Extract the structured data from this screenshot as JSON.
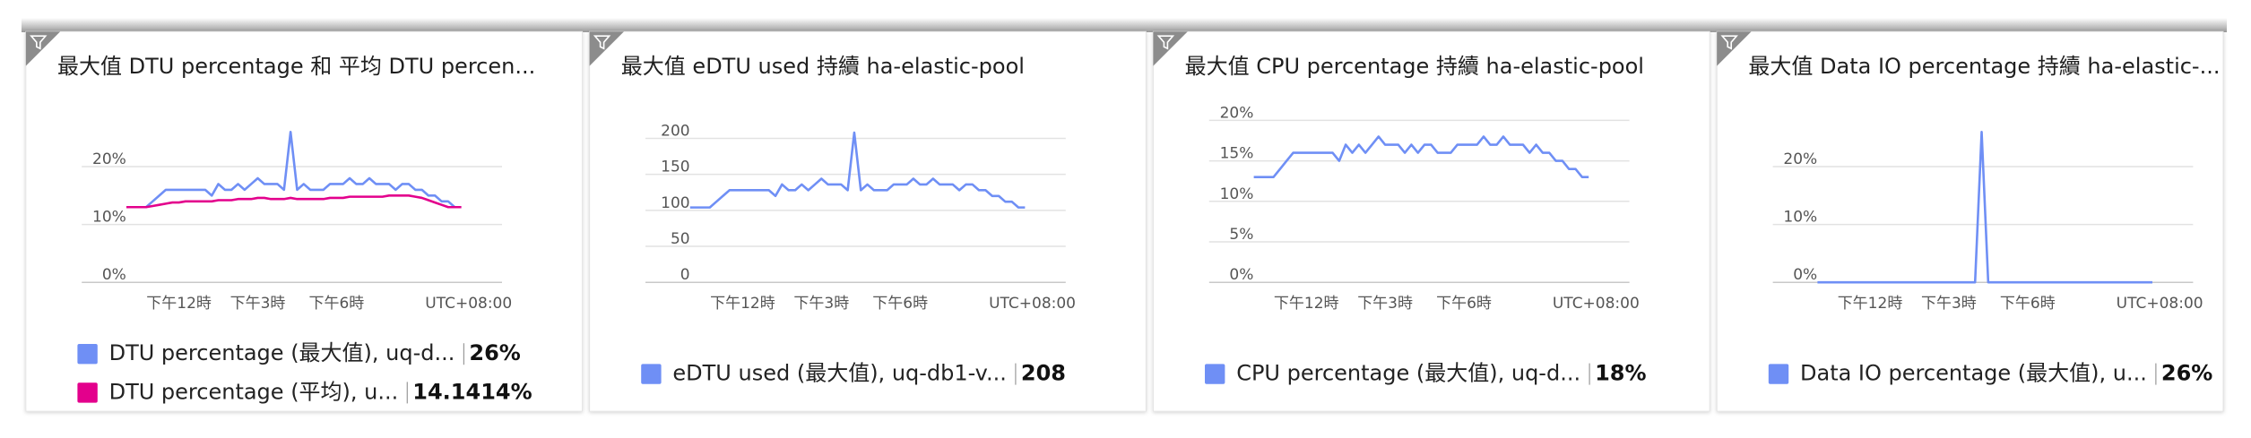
{
  "chart_data": [
    {
      "type": "line",
      "title": "最大值 DTU percentage 和 平均 DTU percen...",
      "xlabel": "UTC+08:00",
      "x": [
        10,
        10.25,
        10.5,
        10.75,
        11,
        11.25,
        11.5,
        11.75,
        12,
        12.25,
        12.5,
        12.75,
        13,
        13.25,
        13.5,
        13.75,
        14,
        14.25,
        14.5,
        14.75,
        15,
        15.25,
        15.5,
        15.75,
        16,
        16.25,
        16.5,
        16.75,
        17,
        17.25,
        17.5,
        17.75,
        18,
        18.25,
        18.5,
        18.75,
        19,
        19.25,
        19.5,
        19.75,
        20,
        20.25,
        20.5,
        20.75,
        21,
        21.25,
        21.5,
        21.75,
        22,
        22.25,
        22.5,
        22.75
      ],
      "xlim": [
        8.3,
        24.3
      ],
      "xticks": [
        {
          "value": 12,
          "label": "下午12時"
        },
        {
          "value": 15,
          "label": "下午3時"
        },
        {
          "value": 18,
          "label": "下午6時"
        }
      ],
      "ylim": [
        0,
        28
      ],
      "yticks": [
        {
          "value": 0,
          "label": "0%"
        },
        {
          "value": 10,
          "label": "10%"
        },
        {
          "value": 20,
          "label": "20%"
        }
      ],
      "grid": true,
      "series": [
        {
          "name": "DTU percentage (最大值), uq-d...",
          "summary": "26%",
          "color": "#6f8ff5",
          "values": [
            13,
            13,
            13,
            13,
            14,
            15,
            16,
            16,
            16,
            16,
            16,
            16,
            16,
            15,
            17,
            16,
            16,
            17,
            16,
            17,
            18,
            17,
            17,
            17,
            16,
            26,
            16,
            17,
            16,
            16,
            16,
            17,
            17,
            17,
            18,
            17,
            17,
            18,
            17,
            17,
            17,
            16,
            17,
            17,
            16,
            16,
            15,
            15,
            14,
            14,
            13,
            13
          ]
        },
        {
          "name": "DTU percentage (平均), u...",
          "summary": "14.1414%",
          "color": "#e3008c",
          "values": [
            13,
            13,
            13,
            13,
            13.2,
            13.4,
            13.6,
            13.8,
            13.8,
            14,
            14,
            14,
            14,
            14,
            14.2,
            14.2,
            14.2,
            14.4,
            14.4,
            14.4,
            14.6,
            14.6,
            14.4,
            14.4,
            14.4,
            14.6,
            14.4,
            14.4,
            14.4,
            14.4,
            14.4,
            14.6,
            14.6,
            14.6,
            14.8,
            14.8,
            14.8,
            14.8,
            14.8,
            14.8,
            15,
            15,
            15,
            15,
            14.8,
            14.6,
            14.2,
            13.8,
            13.4,
            13,
            13,
            13
          ]
        }
      ]
    },
    {
      "type": "line",
      "title": "最大值 eDTU used 持續 ha-elastic-pool",
      "xlabel": "UTC+08:00",
      "x": [
        10,
        10.25,
        10.5,
        10.75,
        11,
        11.25,
        11.5,
        11.75,
        12,
        12.25,
        12.5,
        12.75,
        13,
        13.25,
        13.5,
        13.75,
        14,
        14.25,
        14.5,
        14.75,
        15,
        15.25,
        15.5,
        15.75,
        16,
        16.25,
        16.5,
        16.75,
        17,
        17.25,
        17.5,
        17.75,
        18,
        18.25,
        18.5,
        18.75,
        19,
        19.25,
        19.5,
        19.75,
        20,
        20.25,
        20.5,
        20.75,
        21,
        21.25,
        21.5,
        21.75,
        22,
        22.25,
        22.5,
        22.75
      ],
      "xlim": [
        8.3,
        24.3
      ],
      "xticks": [
        {
          "value": 12,
          "label": "下午12時"
        },
        {
          "value": 15,
          "label": "下午3時"
        },
        {
          "value": 18,
          "label": "下午6時"
        }
      ],
      "ylim": [
        0,
        225
      ],
      "yticks": [
        0,
        50,
        100,
        150,
        200
      ],
      "grid": true,
      "series": [
        {
          "name": "eDTU used (最大值), uq-db1-v...",
          "summary": "208",
          "color": "#6f8ff5",
          "values": [
            104,
            104,
            104,
            104,
            112,
            120,
            128,
            128,
            128,
            128,
            128,
            128,
            128,
            120,
            136,
            128,
            128,
            136,
            128,
            136,
            144,
            136,
            136,
            136,
            128,
            208,
            128,
            136,
            128,
            128,
            128,
            136,
            136,
            136,
            144,
            136,
            136,
            144,
            136,
            136,
            136,
            128,
            136,
            136,
            128,
            128,
            120,
            120,
            112,
            112,
            104,
            104
          ]
        }
      ]
    },
    {
      "type": "line",
      "title": "最大值 CPU percentage 持續 ha-elastic-pool",
      "xlabel": "UTC+08:00",
      "x": [
        10,
        10.25,
        10.5,
        10.75,
        11,
        11.25,
        11.5,
        11.75,
        12,
        12.25,
        12.5,
        12.75,
        13,
        13.25,
        13.5,
        13.75,
        14,
        14.25,
        14.5,
        14.75,
        15,
        15.25,
        15.5,
        15.75,
        16,
        16.25,
        16.5,
        16.75,
        17,
        17.25,
        17.5,
        17.75,
        18,
        18.25,
        18.5,
        18.75,
        19,
        19.25,
        19.5,
        19.75,
        20,
        20.25,
        20.5,
        20.75,
        21,
        21.25,
        21.5,
        21.75,
        22,
        22.25,
        22.5,
        22.75
      ],
      "xlim": [
        8.3,
        24.3
      ],
      "xticks": [
        {
          "value": 12,
          "label": "下午12時"
        },
        {
          "value": 15,
          "label": "下午3時"
        },
        {
          "value": 18,
          "label": "下午6時"
        }
      ],
      "ylim": [
        0,
        20
      ],
      "yticks": [
        {
          "value": 0,
          "label": "0%"
        },
        {
          "value": 5,
          "label": "5%"
        },
        {
          "value": 10,
          "label": "10%"
        },
        {
          "value": 15,
          "label": "15%"
        },
        {
          "value": 20,
          "label": "20%"
        }
      ],
      "grid": true,
      "series": [
        {
          "name": "CPU percentage (最大值), uq-d...",
          "summary": "18%",
          "color": "#6f8ff5",
          "values": [
            13,
            13,
            13,
            13,
            14,
            15,
            16,
            16,
            16,
            16,
            16,
            16,
            16,
            15,
            17,
            16,
            17,
            16,
            17,
            18,
            17,
            17,
            17,
            16,
            17,
            16,
            17,
            17,
            16,
            16,
            16,
            17,
            17,
            17,
            17,
            18,
            17,
            17,
            18,
            17,
            17,
            17,
            16,
            17,
            16,
            16,
            15,
            15,
            14,
            14,
            13,
            13
          ]
        }
      ]
    },
    {
      "type": "line",
      "title": "最大值 Data IO percentage 持續 ha-elastic-...",
      "xlabel": "UTC+08:00",
      "x": [
        10,
        10.25,
        10.5,
        10.75,
        11,
        11.25,
        11.5,
        11.75,
        12,
        12.25,
        12.5,
        12.75,
        13,
        13.25,
        13.5,
        13.75,
        14,
        14.25,
        14.5,
        14.75,
        15,
        15.25,
        15.5,
        15.75,
        16,
        16.25,
        16.5,
        16.75,
        17,
        17.25,
        17.5,
        17.75,
        18,
        18.25,
        18.5,
        18.75,
        19,
        19.25,
        19.5,
        19.75,
        20,
        20.25,
        20.5,
        20.75,
        21,
        21.25,
        21.5,
        21.75,
        22,
        22.25,
        22.5,
        22.75
      ],
      "xlim": [
        8.3,
        24.3
      ],
      "xticks": [
        {
          "value": 12,
          "label": "下午12時"
        },
        {
          "value": 15,
          "label": "下午3時"
        },
        {
          "value": 18,
          "label": "下午6時"
        }
      ],
      "ylim": [
        0,
        28
      ],
      "yticks": [
        {
          "value": 0,
          "label": "0%"
        },
        {
          "value": 10,
          "label": "10%"
        },
        {
          "value": 20,
          "label": "20%"
        }
      ],
      "grid": true,
      "series": [
        {
          "name": "Data IO percentage (最大值), u...",
          "summary": "26%",
          "color": "#6f8ff5",
          "values": [
            0,
            0,
            0,
            0,
            0,
            0,
            0,
            0,
            0,
            0,
            0,
            0,
            0,
            0,
            0,
            0,
            0,
            0,
            0,
            0,
            0,
            0,
            0,
            0,
            0,
            26,
            0,
            0,
            0,
            0,
            0,
            0,
            0,
            0,
            0,
            0,
            0,
            0,
            0,
            0,
            0,
            0,
            0,
            0,
            0,
            0,
            0,
            0,
            0,
            0,
            0,
            0
          ]
        }
      ]
    }
  ]
}
